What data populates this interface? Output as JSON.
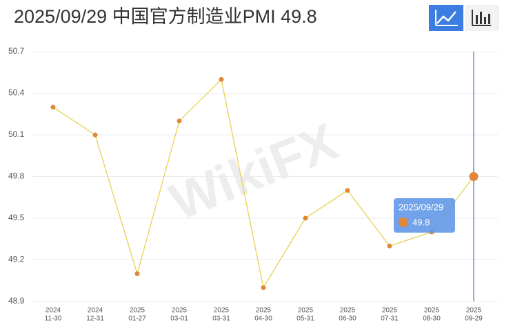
{
  "chart_data": {
    "type": "line",
    "title": "2025/09/29   中国官方制造业PMI 49.8",
    "watermark": "WikiFX",
    "categories": [
      {
        "year": "2024",
        "date": "11-30"
      },
      {
        "year": "2024",
        "date": "12-31"
      },
      {
        "year": "2025",
        "date": "01-27"
      },
      {
        "year": "2025",
        "date": "03-01"
      },
      {
        "year": "2025",
        "date": "03-31"
      },
      {
        "year": "2025",
        "date": "04-30"
      },
      {
        "year": "2025",
        "date": "05-31"
      },
      {
        "year": "2025",
        "date": "06-30"
      },
      {
        "year": "2025",
        "date": "07-31"
      },
      {
        "year": "2025",
        "date": "08-30"
      },
      {
        "year": "2025",
        "date": "09-29"
      }
    ],
    "values": [
      50.3,
      50.1,
      49.1,
      50.2,
      50.5,
      49.0,
      49.5,
      49.7,
      49.3,
      49.4,
      49.8
    ],
    "line_color": "#e6d253",
    "point_color": "#e0873a",
    "ylim": [
      48.9,
      50.7
    ],
    "yticks": [
      48.9,
      49.2,
      49.5,
      49.8,
      50.1,
      50.4,
      50.7
    ],
    "grid": true,
    "tooltip": {
      "date": "2025/09/29",
      "value": 49.8
    }
  }
}
